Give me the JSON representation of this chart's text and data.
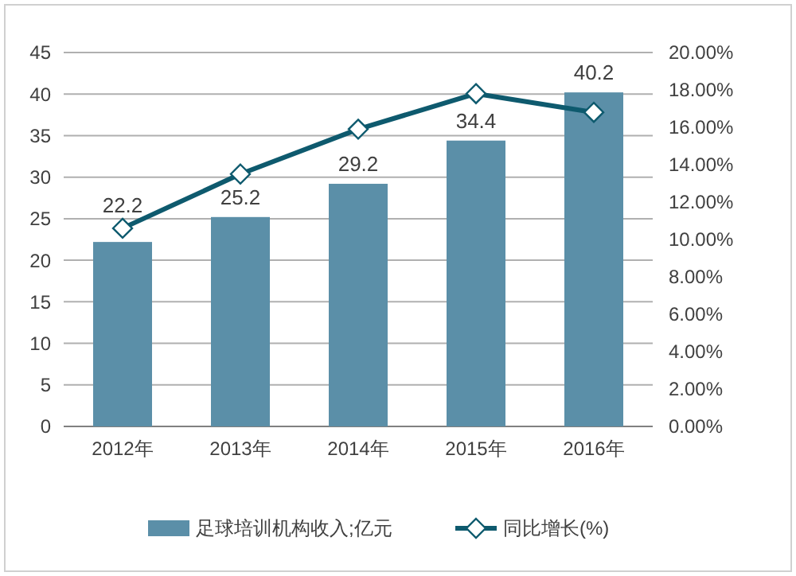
{
  "chart_data": {
    "type": "bar",
    "categories": [
      "2012年",
      "2013年",
      "2014年",
      "2015年",
      "2016年"
    ],
    "series": [
      {
        "name": "足球培训机构收入;亿元",
        "color": "#5b8fa8",
        "values": [
          22.2,
          25.2,
          29.2,
          34.4,
          40.2
        ],
        "value_labels": [
          "22.2",
          "25.2",
          "29.2",
          "34.4",
          "40.2"
        ]
      },
      {
        "name": "同比增长(%)",
        "type": "line",
        "axis": "y2",
        "color": "#0e5a6e",
        "marker": "diamond",
        "values": [
          10.6,
          13.5,
          15.9,
          17.8,
          16.8
        ]
      }
    ],
    "ylim": [
      0,
      45
    ],
    "yticks": [
      0,
      5,
      10,
      15,
      20,
      25,
      30,
      35,
      40,
      45
    ],
    "y2lim": [
      0,
      20
    ],
    "y2ticks": [
      {
        "value": 0,
        "label": "0.00%"
      },
      {
        "value": 2,
        "label": "2.00%"
      },
      {
        "value": 4,
        "label": "4.00%"
      },
      {
        "value": 6,
        "label": "6.00%"
      },
      {
        "value": 8,
        "label": "8.00%"
      },
      {
        "value": 10,
        "label": "10.00%"
      },
      {
        "value": 12,
        "label": "12.00%"
      },
      {
        "value": 14,
        "label": "14.00%"
      },
      {
        "value": 16,
        "label": "16.00%"
      },
      {
        "value": 18,
        "label": "18.00%"
      },
      {
        "value": 20,
        "label": "20.00%"
      }
    ],
    "grid": "y",
    "legend": "bottom"
  }
}
